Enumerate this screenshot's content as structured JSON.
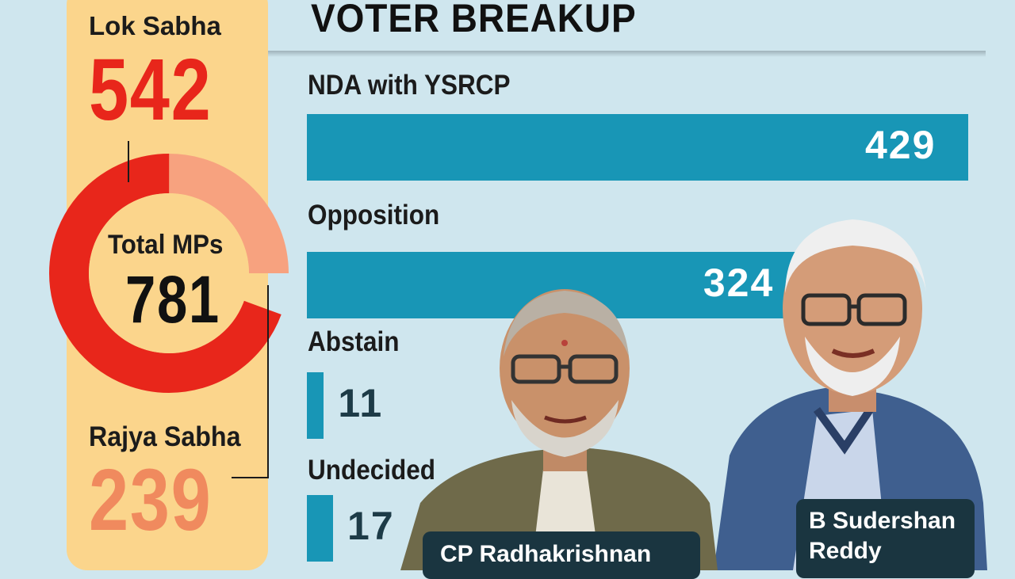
{
  "title": "VOTER BREAKUP",
  "total": {
    "label": "Total MPs",
    "value": "781"
  },
  "houses": [
    {
      "name": "Lok Sabha",
      "value": "542",
      "seats": 542,
      "color": "#e8261b"
    },
    {
      "name": "Rajya Sabha",
      "value": "239",
      "seats": 239,
      "color": "#f7a27f"
    }
  ],
  "colors": {
    "bar": "#1896b6",
    "panel": "#fbd58c",
    "background": "#cfe6ee",
    "callout": "#1a3540"
  },
  "candidates": [
    {
      "name": "CP Radhakrishnan",
      "icon": "person-photo"
    },
    {
      "name_lines": [
        "B Sudershan",
        "Reddy"
      ],
      "icon": "person-photo"
    }
  ],
  "chart_data": [
    {
      "type": "pie",
      "labels": [
        "Lok Sabha",
        "Rajya Sabha"
      ],
      "values": [
        542,
        239
      ],
      "colors": [
        "#e8261b",
        "#f7a27f"
      ]
    },
    {
      "type": "bar",
      "title": "VOTER BREAKUP",
      "categories": [
        "NDA with YSRCP",
        "Opposition",
        "Abstain",
        "Undecided"
      ],
      "values": [
        429,
        324,
        11,
        17
      ],
      "labels": [
        "429",
        "324",
        "11",
        "17"
      ],
      "color": "#1896b6"
    }
  ]
}
